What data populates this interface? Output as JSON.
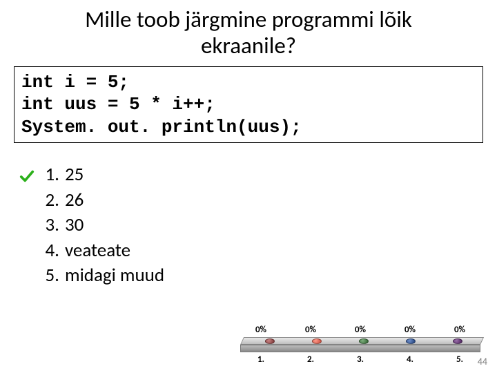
{
  "title_line1": "Mille toob järgmine programmi lõik",
  "title_line2": "ekraanile?",
  "code": "int i = 5;\nint uus = 5 * i++;\nSystem. out. println(uus);",
  "checkmark_color": "#2bb01a",
  "answers": [
    {
      "num": "1.",
      "text": "25",
      "correct": true
    },
    {
      "num": "2.",
      "text": "26",
      "correct": false
    },
    {
      "num": "3.",
      "text": "30",
      "correct": false
    },
    {
      "num": "4.",
      "text": "veateate",
      "correct": false
    },
    {
      "num": "5.",
      "text": "midagi muud",
      "correct": false
    }
  ],
  "chart": {
    "percents": [
      "0%",
      "0%",
      "0%",
      "0%",
      "0%"
    ],
    "categories": [
      "1.",
      "2.",
      "3.",
      "4.",
      "5."
    ],
    "dot_colors": [
      "#7a3333",
      "#c64a3a",
      "#2e5f2e",
      "#1f3f7a",
      "#4a1f5a"
    ],
    "plate_top_gradient": [
      "#e9e9e9",
      "#bfbfbf"
    ],
    "plate_face_gradient": [
      "#bcbcbc",
      "#8a8a8a"
    ]
  },
  "page_number": "44"
}
